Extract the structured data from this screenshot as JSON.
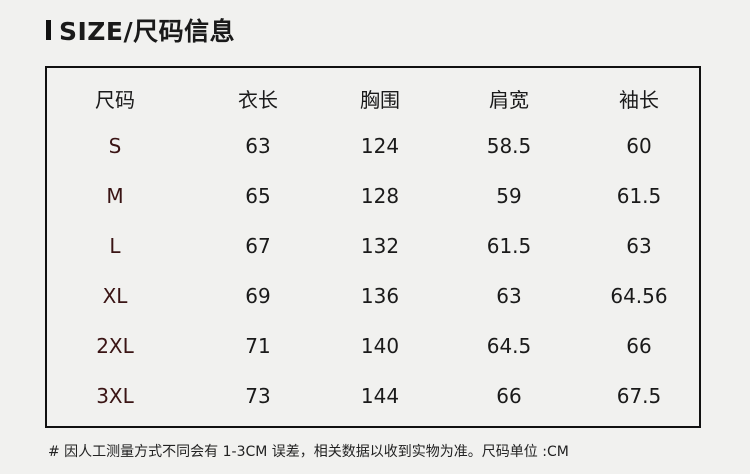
{
  "title": "SIZE/尺码信息",
  "table": {
    "headers": [
      "尺码",
      "衣长",
      "胸围",
      "肩宽",
      "袖长"
    ],
    "rows": [
      [
        "S",
        "63",
        "124",
        "58.5",
        "60"
      ],
      [
        "M",
        "65",
        "128",
        "59",
        "61.5"
      ],
      [
        "L",
        "67",
        "132",
        "61.5",
        "63"
      ],
      [
        "XL",
        "69",
        "136",
        "63",
        "64.56"
      ],
      [
        "2XL",
        "71",
        "140",
        "64.5",
        "66"
      ],
      [
        "3XL",
        "73",
        "144",
        "66",
        "67.5"
      ]
    ]
  },
  "note": "# 因人工测量方式不同会有 1-3CM 误差，相关数据以收到实物为准。尺码单位 :CM",
  "colors": {
    "size_label": "#3a1414",
    "border": "#111111",
    "background": "#f1f1ef"
  }
}
